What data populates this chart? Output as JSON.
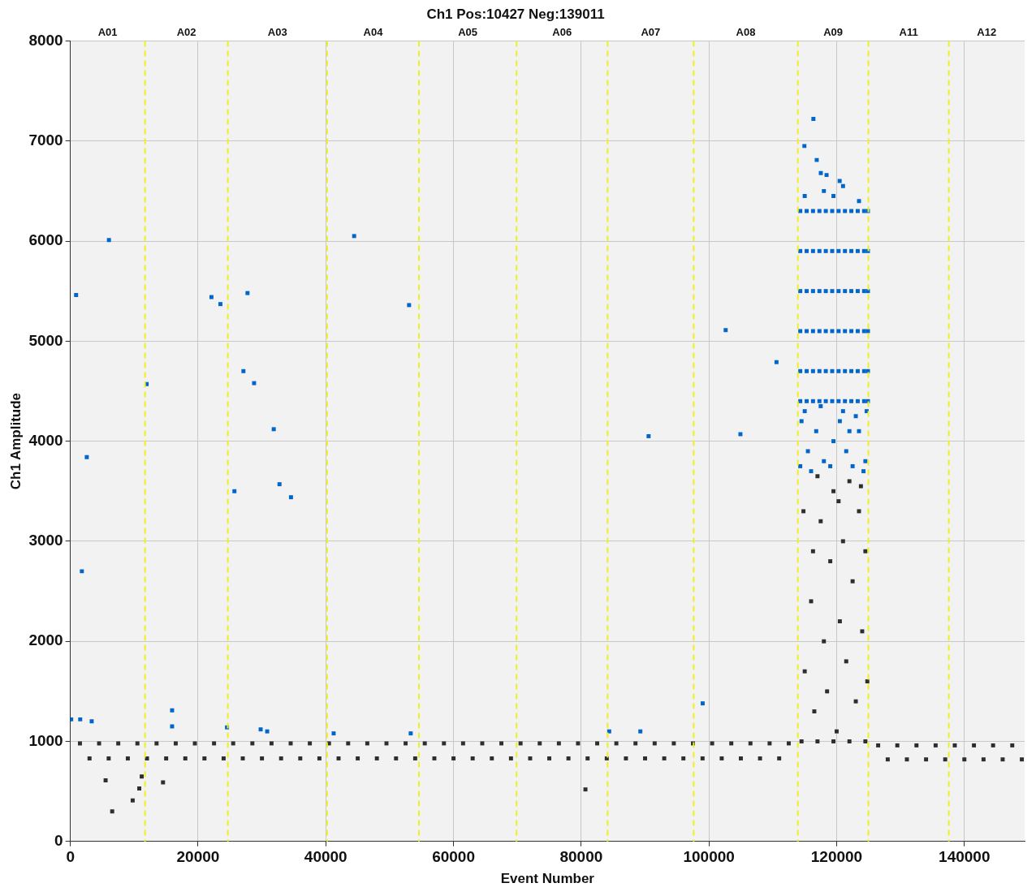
{
  "chart_data": {
    "type": "scatter",
    "title": "Ch1 Pos:10427 Neg:139011",
    "xlabel": "Event Number",
    "ylabel": "Ch1 Amplitude",
    "xlim": [
      0,
      149438
    ],
    "xticks": [
      0,
      20000,
      40000,
      60000,
      80000,
      100000,
      120000,
      140000
    ],
    "ylim": [
      0,
      8000
    ],
    "yticks": [
      0,
      1000,
      2000,
      3000,
      4000,
      5000,
      6000,
      7000,
      8000
    ],
    "annotations": [
      "A01",
      "A02",
      "A03",
      "A04",
      "A05",
      "A06",
      "A07",
      "A08",
      "A09",
      "A11",
      "A12"
    ],
    "grid": true,
    "legend": false,
    "marker": "square",
    "ref_lines": [
      {
        "axis": "x",
        "value": 11690,
        "color": "#f0f020",
        "line_style": "dashed"
      },
      {
        "axis": "x",
        "value": 24660,
        "color": "#f0f020",
        "line_style": "dashed"
      },
      {
        "axis": "x",
        "value": 40200,
        "color": "#f0f020",
        "line_style": "dashed"
      },
      {
        "axis": "x",
        "value": 54590,
        "color": "#f0f020",
        "line_style": "dashed"
      },
      {
        "axis": "x",
        "value": 69870,
        "color": "#f0f020",
        "line_style": "dashed"
      },
      {
        "axis": "x",
        "value": 84130,
        "color": "#f0f020",
        "line_style": "dashed"
      },
      {
        "axis": "x",
        "value": 97610,
        "color": "#f0f020",
        "line_style": "dashed"
      },
      {
        "axis": "x",
        "value": 113920,
        "color": "#f0f020",
        "line_style": "dashed"
      },
      {
        "axis": "x",
        "value": 124970,
        "color": "#f0f020",
        "line_style": "dashed"
      },
      {
        "axis": "x",
        "value": 137560,
        "color": "#f0f020",
        "line_style": "dashed"
      }
    ],
    "series": [
      {
        "color": "#2e2e2e",
        "x": [
          1500,
          4500,
          7500,
          10500,
          13500,
          16500,
          19500,
          22500,
          25500,
          28500,
          31500,
          34500,
          37500,
          40500,
          43500,
          46500,
          49500,
          52500,
          55500,
          58500,
          61500,
          64500,
          67500,
          70500,
          73500,
          76500,
          79500,
          82500,
          85500,
          88500,
          91500,
          94500,
          97500,
          100500,
          103500,
          106500,
          109500,
          112500,
          3000,
          6000,
          9000,
          12000,
          15000,
          18000,
          21000,
          24000,
          27000,
          30000,
          33000,
          36000,
          39000,
          42000,
          45000,
          48000,
          51000,
          54000,
          57000,
          60000,
          63000,
          66000,
          69000,
          72000,
          75000,
          78000,
          81000,
          84000,
          87000,
          90000,
          93000,
          96000,
          99000,
          102000,
          105000,
          108000,
          111000,
          126500,
          129500,
          132500,
          135500,
          138500,
          141500,
          144500,
          147500,
          128000,
          131000,
          134000,
          137000,
          140000,
          143000,
          146000,
          149000,
          114500,
          117000,
          119500,
          122000,
          124500,
          115000,
          116000,
          116500,
          117500,
          118000,
          118500,
          119000,
          119500,
          120000,
          120500,
          121000,
          121500,
          122000,
          122500,
          123000,
          123500,
          124000,
          124500,
          124800,
          117000,
          120300,
          123800,
          114800,
          116300,
          5520,
          6550,
          9760,
          10790,
          11170,
          14510,
          80660
        ],
        "values": [
          980,
          980,
          980,
          980,
          980,
          980,
          980,
          980,
          980,
          980,
          980,
          980,
          980,
          980,
          980,
          980,
          980,
          980,
          980,
          980,
          980,
          980,
          980,
          980,
          980,
          980,
          980,
          980,
          980,
          980,
          980,
          980,
          980,
          980,
          980,
          980,
          980,
          980,
          830,
          830,
          830,
          830,
          830,
          830,
          830,
          830,
          830,
          830,
          830,
          830,
          830,
          830,
          830,
          830,
          830,
          830,
          830,
          830,
          830,
          830,
          830,
          830,
          830,
          830,
          830,
          830,
          830,
          830,
          830,
          830,
          830,
          830,
          830,
          830,
          830,
          960,
          960,
          960,
          960,
          960,
          960,
          960,
          960,
          820,
          820,
          820,
          820,
          820,
          820,
          820,
          820,
          1000,
          1000,
          1000,
          1000,
          1000,
          1700,
          2400,
          1300,
          3200,
          2000,
          1500,
          2800,
          3500,
          1100,
          2200,
          3000,
          1800,
          3600,
          2600,
          1400,
          3300,
          2100,
          2900,
          1600,
          3650,
          3400,
          3550,
          3300,
          2900,
          610,
          300,
          410,
          530,
          650,
          590,
          520
        ]
      },
      {
        "color": "#0066cc",
        "x": [
          900,
          6040,
          2570,
          1800,
          130,
          1540,
          3340,
          11940,
          15930,
          15930,
          22090,
          23500,
          27740,
          27100,
          28770,
          31850,
          32750,
          34550,
          25690,
          24530,
          29800,
          30820,
          44440,
          53040,
          53300,
          41230,
          90550,
          84380,
          89260,
          99020,
          102620,
          104930,
          110580,
          116360,
          114950,
          116880,
          117520,
          118420,
          120470,
          115000,
          118000,
          121000,
          123500,
          119500,
          114300,
          115300,
          116300,
          117300,
          118300,
          119300,
          120300,
          121300,
          122300,
          123300,
          124300,
          124900,
          114300,
          115300,
          116300,
          117300,
          118300,
          119300,
          120300,
          121300,
          122300,
          123300,
          124300,
          124900,
          114300,
          115300,
          116300,
          117300,
          118300,
          119300,
          120300,
          121300,
          122300,
          123300,
          124300,
          124900,
          114300,
          115300,
          116300,
          117300,
          118300,
          119300,
          120300,
          121300,
          122300,
          123300,
          124300,
          124900,
          114300,
          115300,
          116300,
          117300,
          118300,
          119300,
          120300,
          121300,
          122300,
          123300,
          124300,
          124900,
          114300,
          115300,
          116300,
          117300,
          118300,
          119300,
          120300,
          121300,
          122300,
          123300,
          124300,
          124900,
          114500,
          115500,
          116800,
          118000,
          119500,
          120500,
          121500,
          122500,
          123500,
          124500,
          124700,
          115000,
          117500,
          121000,
          123000,
          114300,
          116000,
          119000,
          122000,
          124200
        ],
        "values": [
          5460,
          6010,
          3840,
          2700,
          1220,
          1220,
          1200,
          4570,
          1310,
          1150,
          5440,
          5370,
          5480,
          4700,
          4580,
          4120,
          3570,
          3440,
          3500,
          1140,
          1120,
          1100,
          6050,
          5360,
          1080,
          1080,
          4050,
          1100,
          1100,
          1380,
          5110,
          4070,
          4790,
          7220,
          6950,
          6810,
          6680,
          6660,
          6600,
          6450,
          6500,
          6550,
          6400,
          6450,
          6300,
          6300,
          6300,
          6300,
          6300,
          6300,
          6300,
          6300,
          6300,
          6300,
          6300,
          6300,
          5900,
          5900,
          5900,
          5900,
          5900,
          5900,
          5900,
          5900,
          5900,
          5900,
          5900,
          5900,
          5500,
          5500,
          5500,
          5500,
          5500,
          5500,
          5500,
          5500,
          5500,
          5500,
          5500,
          5500,
          5100,
          5100,
          5100,
          5100,
          5100,
          5100,
          5100,
          5100,
          5100,
          5100,
          5100,
          5100,
          4700,
          4700,
          4700,
          4700,
          4700,
          4700,
          4700,
          4700,
          4700,
          4700,
          4700,
          4700,
          4400,
          4400,
          4400,
          4400,
          4400,
          4400,
          4400,
          4400,
          4400,
          4400,
          4400,
          4400,
          4200,
          3900,
          4100,
          3800,
          4000,
          4200,
          3900,
          3750,
          4100,
          3800,
          4300,
          4300,
          4350,
          4300,
          4250,
          3750,
          3700,
          3750,
          4100,
          3700
        ]
      }
    ]
  }
}
